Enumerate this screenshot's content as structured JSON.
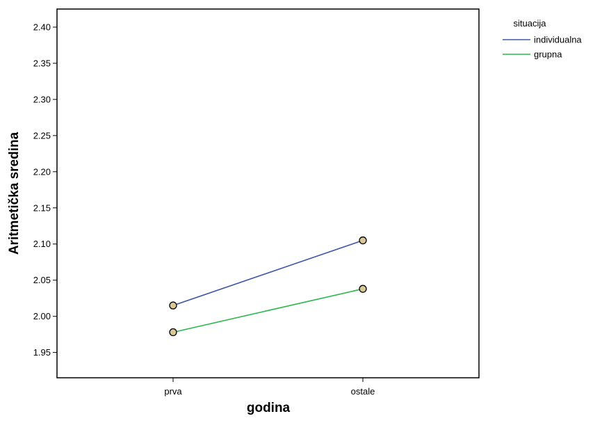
{
  "chart_data": {
    "type": "line",
    "title": "",
    "xlabel": "godina",
    "ylabel": "Aritmetička sredina",
    "categories": [
      "prva",
      "ostale"
    ],
    "ylim": [
      1.915,
      2.425
    ],
    "yticks": [
      1.95,
      2.0,
      2.05,
      2.1,
      2.15,
      2.2,
      2.25,
      2.3,
      2.35,
      2.4
    ],
    "ytick_labels": [
      "1.95",
      "2.00",
      "2.05",
      "2.10",
      "2.15",
      "2.20",
      "2.25",
      "2.30",
      "2.35",
      "2.40"
    ],
    "grid": false,
    "legend": {
      "title": "situacija",
      "placement": "right"
    },
    "marker_color": "#d8c898",
    "series": [
      {
        "name": "individualna",
        "values": [
          2.015,
          2.105
        ],
        "color": "#3f58a8"
      },
      {
        "name": "grupna",
        "values": [
          1.978,
          2.038
        ],
        "color": "#2db84d"
      }
    ]
  }
}
